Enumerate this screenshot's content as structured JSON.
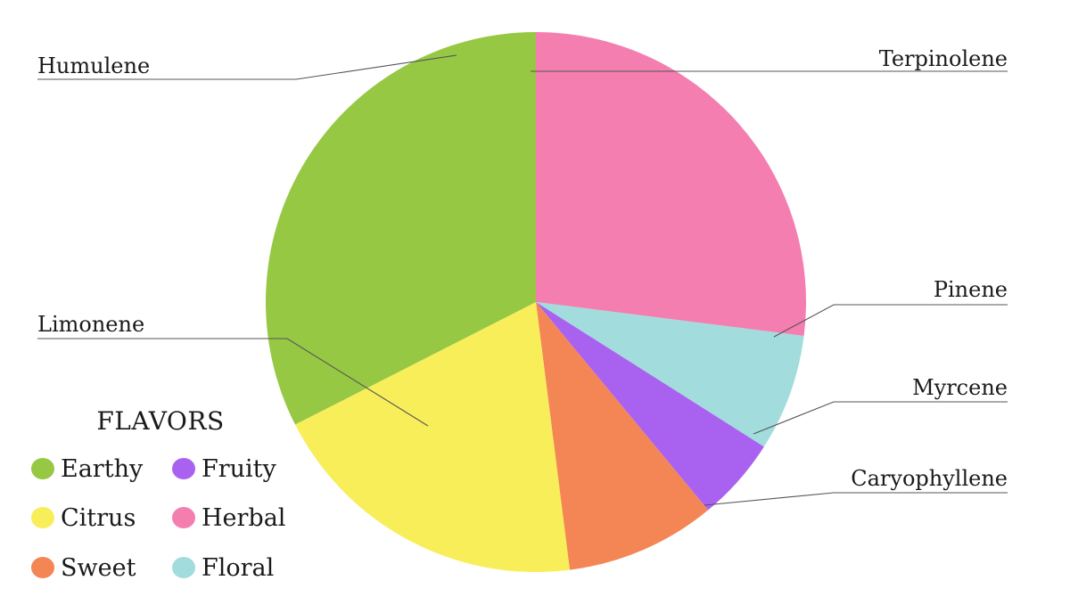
{
  "chart_data": {
    "type": "pie",
    "title": "",
    "slices": [
      {
        "label": "Terpinolene",
        "value": 27.0,
        "color": "#f47eb0",
        "flavor": "Herbal"
      },
      {
        "label": "Pinene",
        "value": 7.0,
        "color": "#a3dcdc",
        "flavor": "Floral"
      },
      {
        "label": "Myrcene",
        "value": 5.0,
        "color": "#a962f0",
        "flavor": "Fruity"
      },
      {
        "label": "Caryophyllene",
        "value": 9.0,
        "color": "#f48656",
        "flavor": "Sweet"
      },
      {
        "label": "Limonene",
        "value": 19.5,
        "color": "#f8ee5a",
        "flavor": "Citrus"
      },
      {
        "label": "Humulene",
        "value": 32.5,
        "color": "#96c844",
        "flavor": "Earthy"
      }
    ],
    "start_angle_deg": 0,
    "direction": "clockwise"
  },
  "legend": {
    "title": "FLAVORS",
    "items": [
      {
        "label": "Earthy",
        "color": "#96c844"
      },
      {
        "label": "Fruity",
        "color": "#a962f0"
      },
      {
        "label": "Citrus",
        "color": "#f8ee5a"
      },
      {
        "label": "Herbal",
        "color": "#f47eb0"
      },
      {
        "label": "Sweet",
        "color": "#f48656"
      },
      {
        "label": "Floral",
        "color": "#a3dcdc"
      }
    ]
  }
}
